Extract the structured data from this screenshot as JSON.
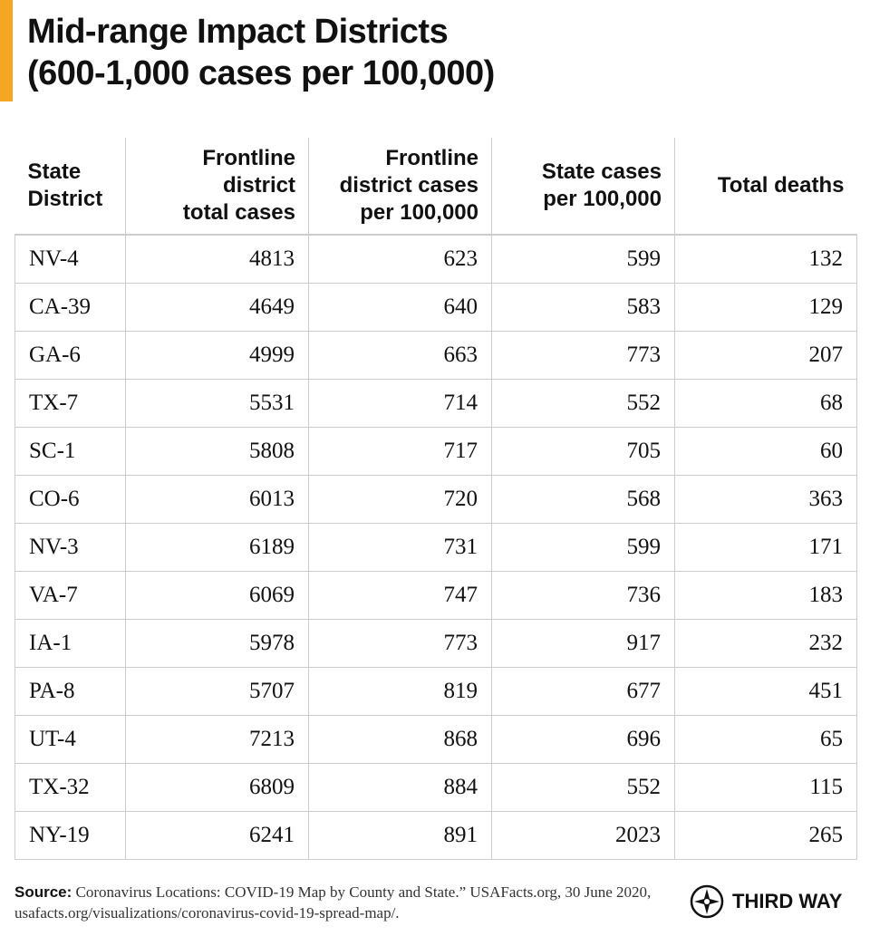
{
  "header": {
    "title": [
      "Mid-range Impact Districts",
      "(600-1,000 cases per 100,000)"
    ]
  },
  "table": {
    "columns": [
      [
        "State",
        "District"
      ],
      [
        "Frontline",
        "district",
        "total cases"
      ],
      [
        "Frontline",
        "district cases",
        "per 100,000"
      ],
      [
        "State cases",
        "per 100,000"
      ],
      [
        "Total deaths"
      ]
    ],
    "rows": [
      [
        "NV-4",
        4813,
        623,
        599,
        132
      ],
      [
        "CA-39",
        4649,
        640,
        583,
        129
      ],
      [
        "GA-6",
        4999,
        663,
        773,
        207
      ],
      [
        "TX-7",
        5531,
        714,
        552,
        68
      ],
      [
        "SC-1",
        5808,
        717,
        705,
        60
      ],
      [
        "CO-6",
        6013,
        720,
        568,
        363
      ],
      [
        "NV-3",
        6189,
        731,
        599,
        171
      ],
      [
        "VA-7",
        6069,
        747,
        736,
        183
      ],
      [
        "IA-1",
        5978,
        773,
        917,
        232
      ],
      [
        "PA-8",
        5707,
        819,
        677,
        451
      ],
      [
        "UT-4",
        7213,
        868,
        696,
        65
      ],
      [
        "TX-32",
        6809,
        884,
        552,
        115
      ],
      [
        "NY-19",
        6241,
        891,
        2023,
        265
      ]
    ]
  },
  "footer": {
    "source_label": "Source:",
    "source_text": "Coronavirus Locations: COVID-19 Map by County and State.” USAFacts.org, 30 June 2020, usafacts.org/visualizations/coronavirus-covid-19-spread-map/.",
    "logo": "THIRD WAY"
  }
}
